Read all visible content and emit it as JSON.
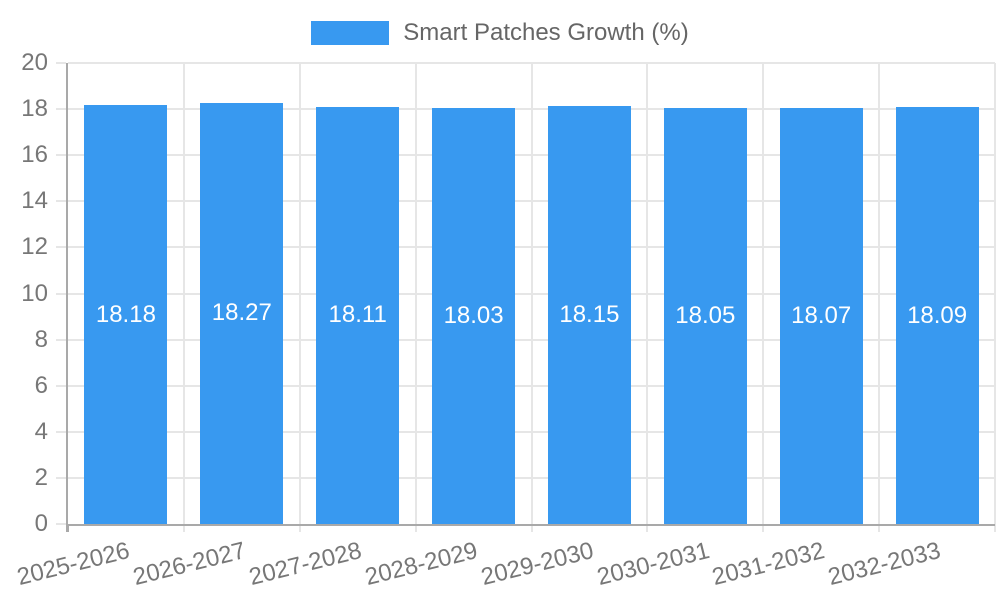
{
  "chart_data": {
    "type": "bar",
    "legend_label": "Smart Patches Growth (%)",
    "legend_position": "top",
    "categories": [
      "2025-2026",
      "2026-2027",
      "2027-2028",
      "2028-2029",
      "2029-2030",
      "2030-2031",
      "2031-2032",
      "2032-2033"
    ],
    "values": [
      18.18,
      18.27,
      18.11,
      18.03,
      18.15,
      18.05,
      18.07,
      18.09
    ],
    "data_labels": [
      "18.18",
      "18.27",
      "18.11",
      "18.03",
      "18.15",
      "18.05",
      "18.07",
      "18.09"
    ],
    "xlabel": "",
    "ylabel": "",
    "ylim": [
      0,
      20
    ],
    "ytick_step": 2,
    "ytick_labels": [
      "0",
      "2",
      "4",
      "6",
      "8",
      "10",
      "12",
      "14",
      "16",
      "18",
      "20"
    ],
    "grid": true,
    "colors": {
      "bar": "#3899f0",
      "bar_value_text": "#ffffff",
      "axis_text": "#777777",
      "legend_text": "#666666",
      "gridline": "#e6e6e6",
      "axis_line": "#a9a9a9",
      "background": "#ffffff"
    }
  }
}
